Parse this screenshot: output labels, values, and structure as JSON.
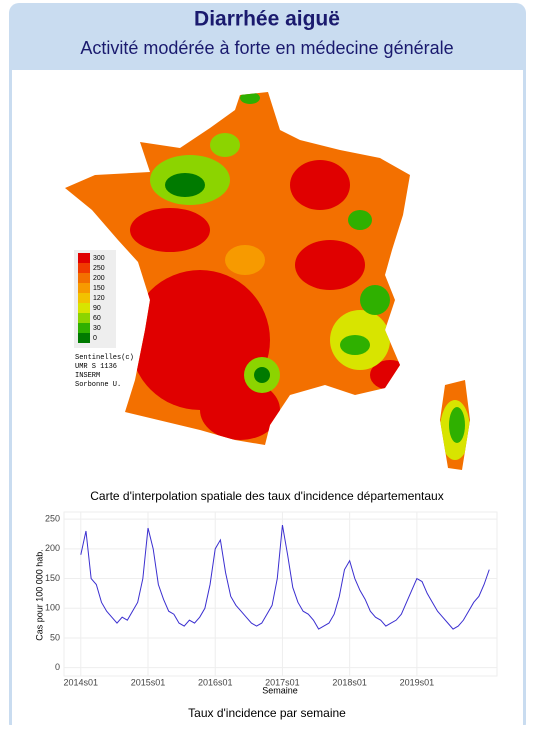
{
  "header": {
    "title": "Diarrhée aiguë",
    "subtitle": "Activité modérée à forte en médecine générale"
  },
  "map": {
    "legend": [
      {
        "label": "300",
        "color": "#e00000"
      },
      {
        "label": "250",
        "color": "#f03a00"
      },
      {
        "label": "200",
        "color": "#f37000"
      },
      {
        "label": "150",
        "color": "#f79a00"
      },
      {
        "label": "120",
        "color": "#f2c200"
      },
      {
        "label": "90",
        "color": "#d8e400"
      },
      {
        "label": "60",
        "color": "#8cd400"
      },
      {
        "label": "30",
        "color": "#2fb000"
      },
      {
        "label": "0",
        "color": "#007a00"
      }
    ],
    "credits": [
      "Sentinelles(c)",
      "UMR S 1136",
      "INSERM",
      "Sorbonne U."
    ],
    "caption": "Carte d'interpolation spatiale des taux d'incidence départementaux"
  },
  "chart_data": {
    "type": "line",
    "caption": "Taux d'incidence par semaine",
    "xlabel": "Semaine",
    "ylabel": "Cas pour 100 000 hab.",
    "x": [
      "2014s01",
      "2014s05",
      "2014s09",
      "2014s13",
      "2014s17",
      "2014s21",
      "2014s25",
      "2014s29",
      "2014s33",
      "2014s37",
      "2014s41",
      "2014s45",
      "2014s49",
      "2015s01",
      "2015s05",
      "2015s09",
      "2015s13",
      "2015s17",
      "2015s21",
      "2015s25",
      "2015s29",
      "2015s33",
      "2015s37",
      "2015s41",
      "2015s45",
      "2015s49",
      "2016s01",
      "2016s05",
      "2016s09",
      "2016s13",
      "2016s17",
      "2016s21",
      "2016s25",
      "2016s29",
      "2016s33",
      "2016s37",
      "2016s41",
      "2016s45",
      "2016s49",
      "2017s01",
      "2017s05",
      "2017s09",
      "2017s13",
      "2017s17",
      "2017s21",
      "2017s25",
      "2017s29",
      "2017s33",
      "2017s37",
      "2017s41",
      "2017s45",
      "2017s49",
      "2018s01",
      "2018s05",
      "2018s09",
      "2018s13",
      "2018s17",
      "2018s21",
      "2018s25",
      "2018s29",
      "2018s33",
      "2018s37",
      "2018s41",
      "2018s45",
      "2018s49",
      "2019s01",
      "2019s05",
      "2019s09",
      "2019s13",
      "2019s17",
      "2019s21",
      "2019s25",
      "2019s29",
      "2019s33",
      "2019s37",
      "2019s41",
      "2019s45",
      "2019s49",
      "2020s01",
      "2020s05"
    ],
    "series": [
      {
        "name": "Taux d'incidence",
        "color": "#3b2fd0",
        "values": [
          190,
          230,
          150,
          140,
          110,
          95,
          85,
          75,
          85,
          80,
          95,
          110,
          150,
          235,
          200,
          140,
          115,
          95,
          90,
          75,
          70,
          80,
          75,
          85,
          100,
          140,
          200,
          215,
          160,
          120,
          105,
          95,
          85,
          75,
          70,
          75,
          90,
          105,
          150,
          240,
          190,
          135,
          110,
          95,
          90,
          80,
          65,
          70,
          75,
          90,
          120,
          165,
          180,
          150,
          130,
          115,
          95,
          85,
          80,
          70,
          75,
          80,
          90,
          110,
          130,
          150,
          145,
          125,
          110,
          95,
          85,
          75,
          65,
          70,
          80,
          95,
          110,
          120,
          140,
          165
        ]
      }
    ],
    "xlim": [
      "2013s40",
      "2020s11"
    ],
    "xticks": [
      "2014s01",
      "2015s01",
      "2016s01",
      "2017s01",
      "2018s01",
      "2019s01"
    ],
    "ylim": [
      -14,
      262
    ],
    "yticks": [
      0,
      50,
      100,
      150,
      200,
      250
    ],
    "grid": true
  }
}
